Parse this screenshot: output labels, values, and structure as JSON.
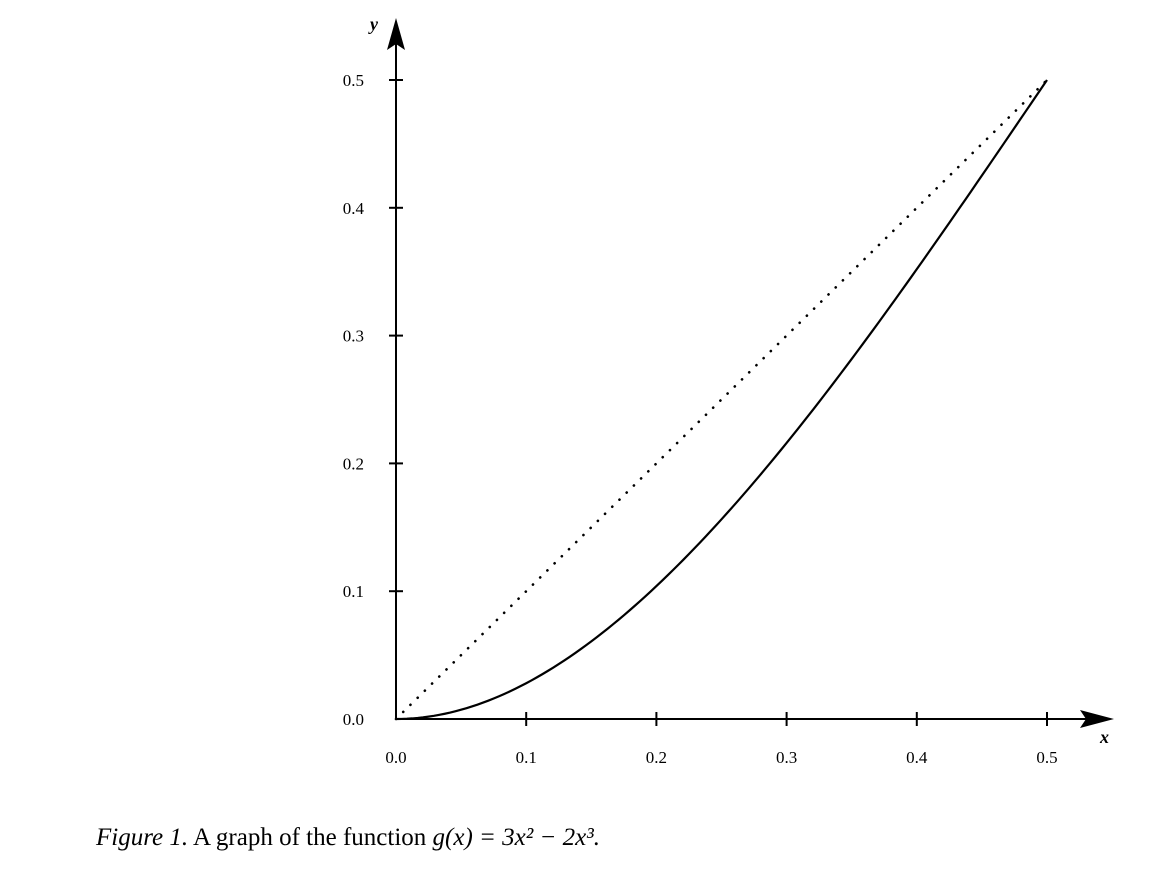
{
  "chart_data": {
    "type": "line",
    "xlabel": "x",
    "ylabel": "y",
    "xlim": [
      0,
      0.5
    ],
    "ylim": [
      0,
      0.5
    ],
    "xticks": [
      "0.0",
      "0.1",
      "0.2",
      "0.3",
      "0.4",
      "0.5"
    ],
    "yticks": [
      "0.0",
      "0.1",
      "0.2",
      "0.3",
      "0.4",
      "0.5"
    ],
    "grid": false,
    "series": [
      {
        "style": "solid",
        "x": [
          0,
          0.05,
          0.1,
          0.15,
          0.2,
          0.25,
          0.3,
          0.35,
          0.4,
          0.45,
          0.5
        ],
        "y": [
          0,
          0.00725,
          0.028,
          0.06075,
          0.104,
          0.15625,
          0.216,
          0.28175,
          0.352,
          0.42525,
          0.5
        ]
      },
      {
        "style": "dotted",
        "x": [
          0,
          0.5
        ],
        "y": [
          0,
          0.5
        ]
      }
    ]
  },
  "caption": {
    "label": "Figure 1.",
    "text": "A graph of the function",
    "formula": "g(x) = 3x² − 2x³."
  }
}
